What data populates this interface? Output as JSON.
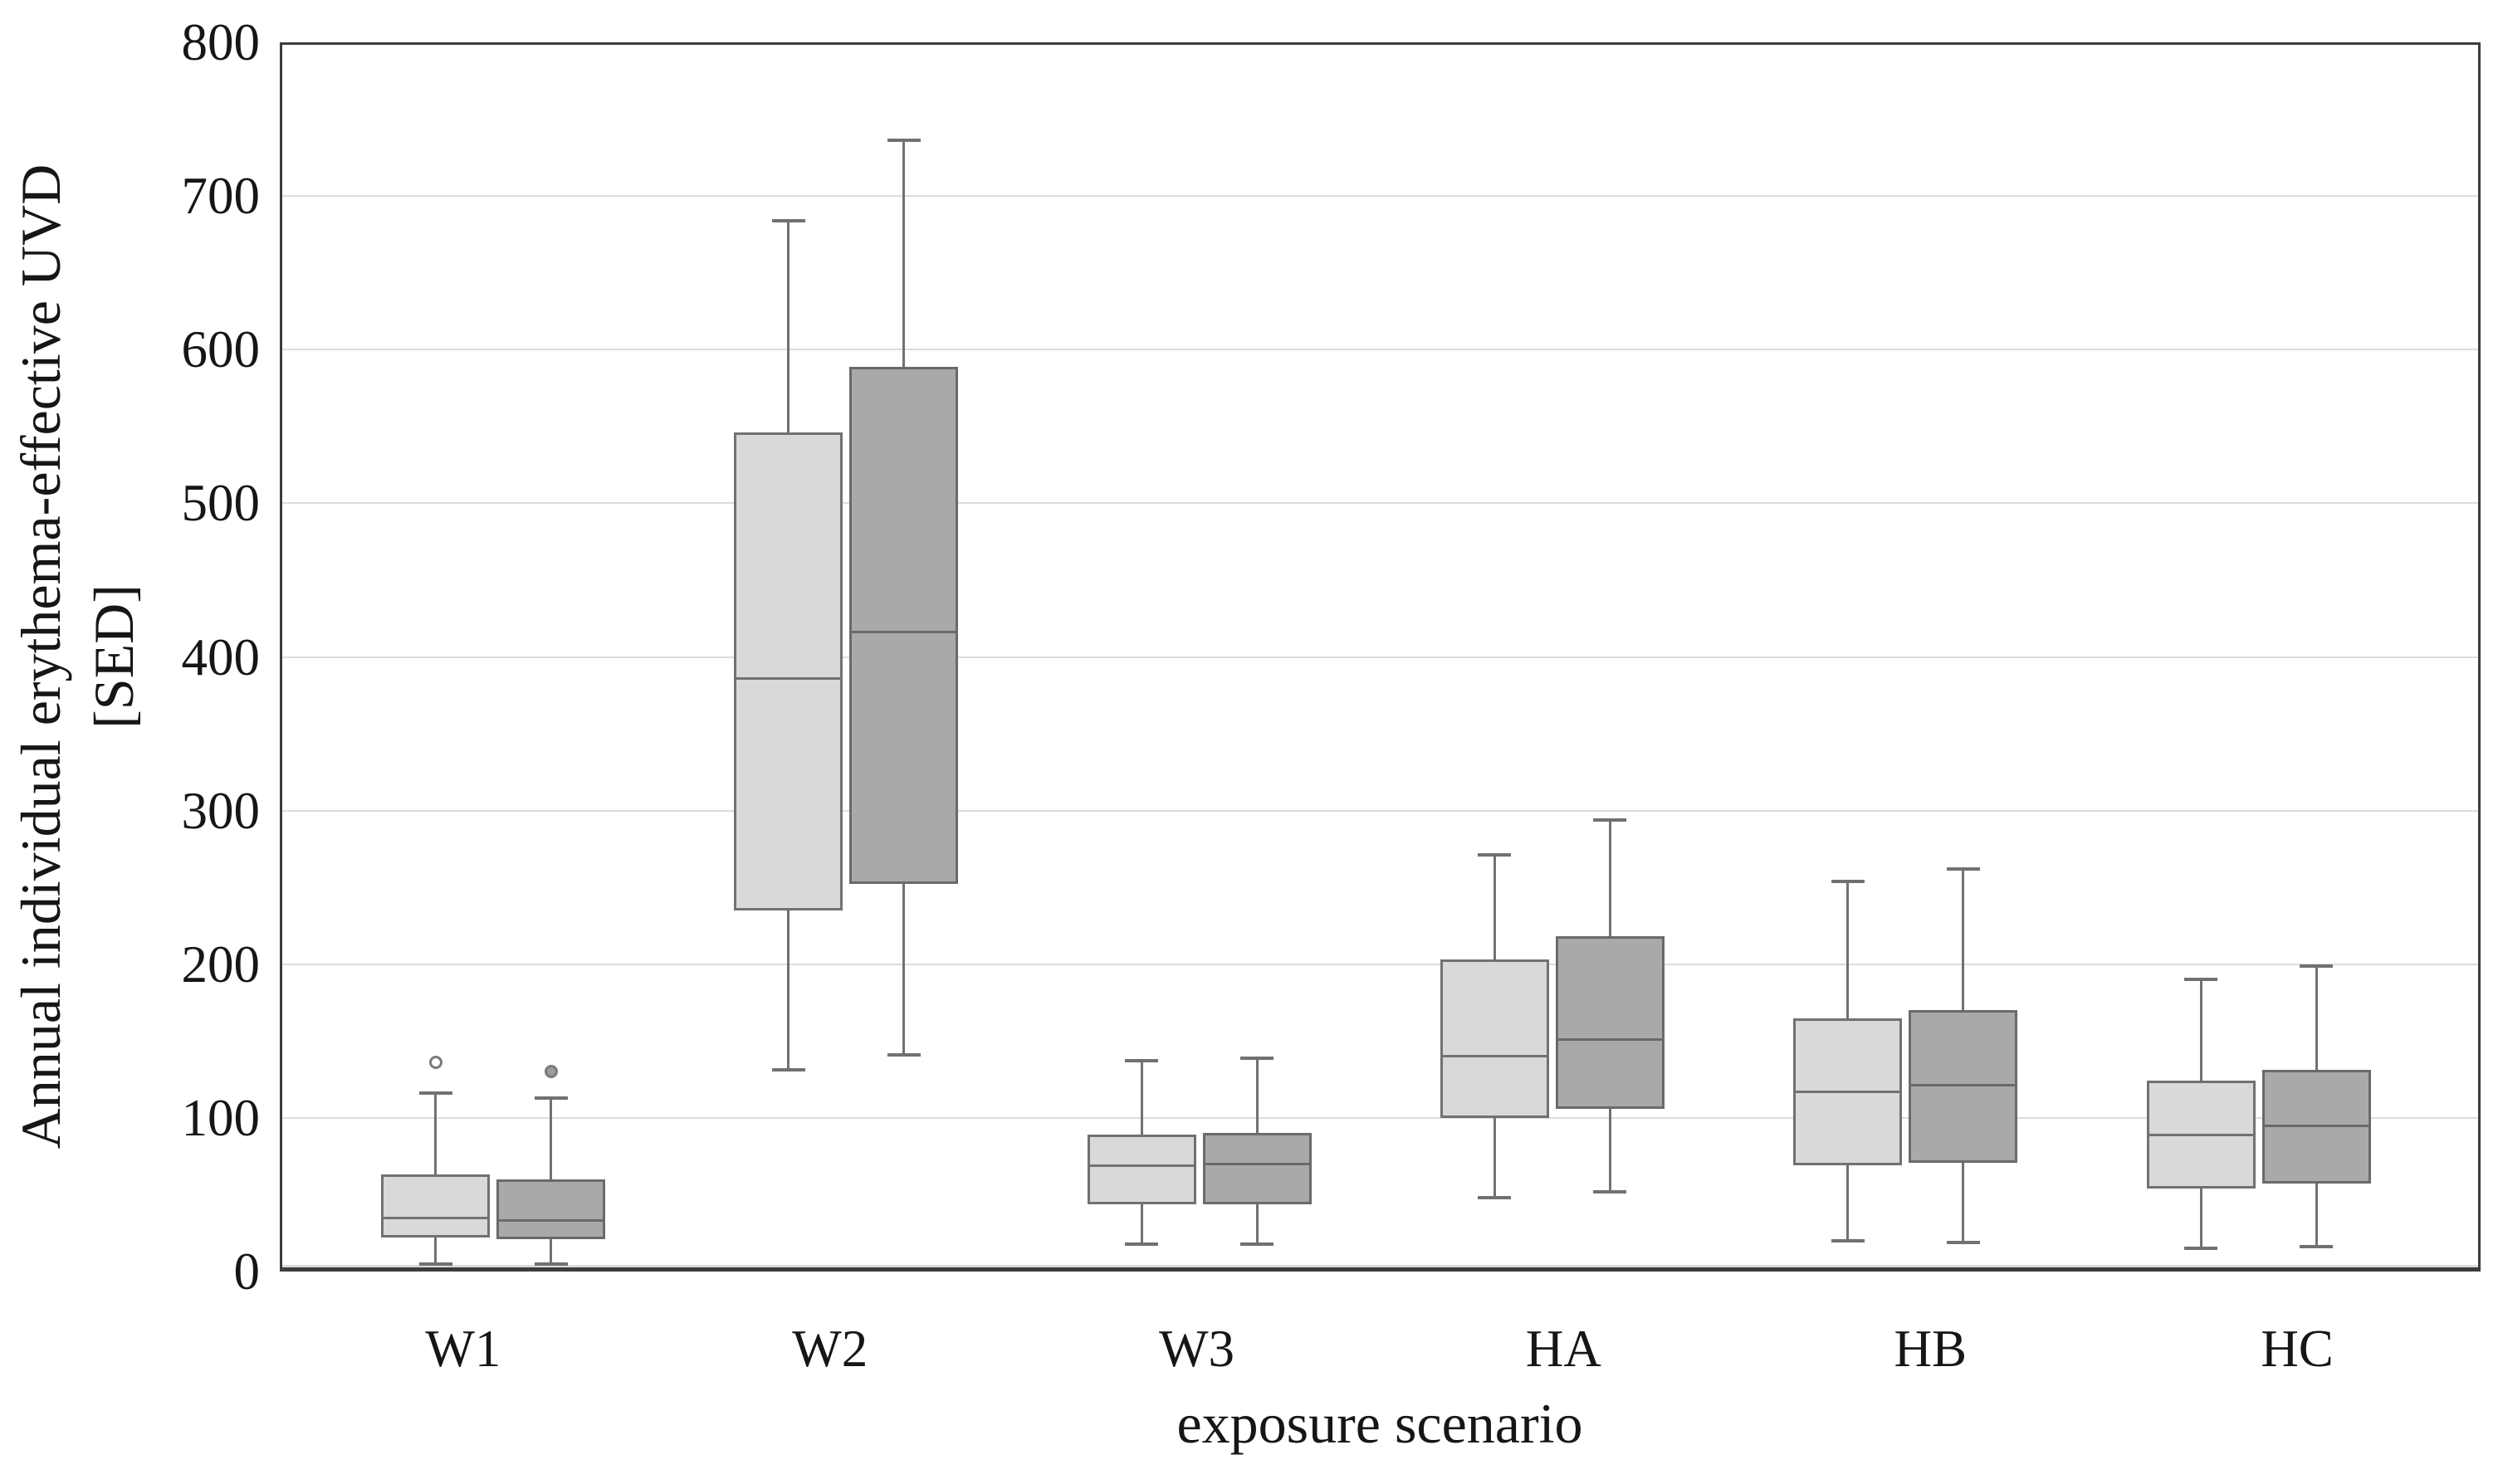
{
  "chart_data": {
    "type": "boxplot",
    "title": "",
    "xlabel": "exposure scenario",
    "ylabel_line1": "Annual individual erythema-effective UVD",
    "ylabel_line2": "[SED]",
    "ylim": [
      0,
      800
    ],
    "yticks": [
      0,
      100,
      200,
      300,
      400,
      500,
      600,
      700,
      800
    ],
    "grid": "horizontal-light",
    "legend": "none",
    "categories": [
      "W1",
      "W2",
      "W3",
      "HA",
      "HB",
      "HC"
    ],
    "series": [
      {
        "name": "boxes-light",
        "fill": "#d9d9d9",
        "stroke": "#717171",
        "boxes": [
          {
            "category": "W1",
            "whisker_low": 5,
            "q1": 22,
            "median": 35,
            "q3": 63,
            "whisker_high": 116,
            "outliers": [
              136
            ]
          },
          {
            "category": "W2",
            "whisker_low": 131,
            "q1": 235,
            "median": 386,
            "q3": 546,
            "whisker_high": 684,
            "outliers": []
          },
          {
            "category": "W3",
            "whisker_low": 18,
            "q1": 44,
            "median": 69,
            "q3": 89,
            "whisker_high": 137,
            "outliers": []
          },
          {
            "category": "HA",
            "whisker_low": 48,
            "q1": 100,
            "median": 140,
            "q3": 203,
            "whisker_high": 271,
            "outliers": []
          },
          {
            "category": "HB",
            "whisker_low": 20,
            "q1": 69,
            "median": 117,
            "q3": 165,
            "whisker_high": 254,
            "outliers": []
          },
          {
            "category": "HC",
            "whisker_low": 15,
            "q1": 54,
            "median": 89,
            "q3": 124,
            "whisker_high": 190,
            "outliers": []
          }
        ]
      },
      {
        "name": "boxes-dark",
        "fill": "#a9a9a9",
        "stroke": "#6a6a6a",
        "boxes": [
          {
            "category": "W1",
            "whisker_low": 5,
            "q1": 21,
            "median": 33,
            "q3": 60,
            "whisker_high": 113,
            "outliers": [
              130
            ]
          },
          {
            "category": "W2",
            "whisker_low": 141,
            "q1": 252,
            "median": 416,
            "q3": 589,
            "whisker_high": 736,
            "outliers": []
          },
          {
            "category": "W3",
            "whisker_low": 18,
            "q1": 44,
            "median": 70,
            "q3": 90,
            "whisker_high": 139,
            "outliers": []
          },
          {
            "category": "HA",
            "whisker_low": 52,
            "q1": 106,
            "median": 151,
            "q3": 218,
            "whisker_high": 294,
            "outliers": []
          },
          {
            "category": "HB",
            "whisker_low": 19,
            "q1": 71,
            "median": 121,
            "q3": 170,
            "whisker_high": 262,
            "outliers": []
          },
          {
            "category": "HC",
            "whisker_low": 16,
            "q1": 57,
            "median": 95,
            "q3": 131,
            "whisker_high": 199,
            "outliers": []
          }
        ]
      }
    ],
    "colors": {
      "background": "#ffffff",
      "gridline": "#dcdcdc",
      "plot_border": "#3d3d3d",
      "whisker": "#717171",
      "text": "#161616",
      "outlier_stroke": "#7a7a7a",
      "outlier_light_fill": "#ffffff",
      "outlier_dark_fill": "#9d9d9d"
    }
  }
}
